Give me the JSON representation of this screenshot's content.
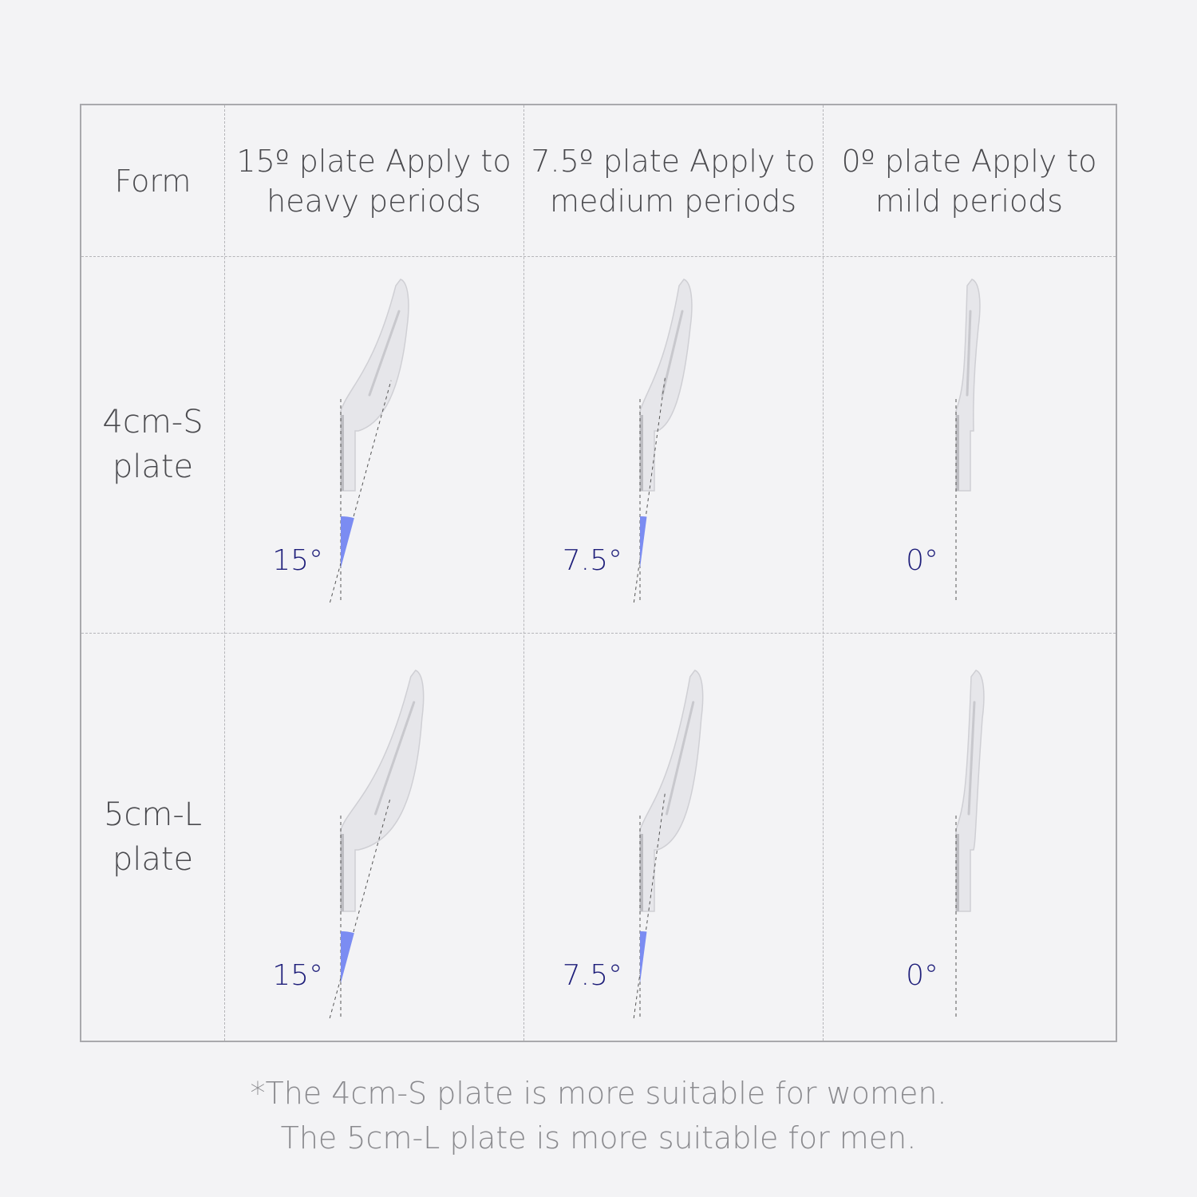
{
  "table": {
    "corner_header": "Form",
    "columns": [
      {
        "label": "15º plate Apply to heavy periods",
        "line1": "15º plate Apply to",
        "line2": "heavy periods",
        "angle": 15
      },
      {
        "label": "7.5º plate Apply to medium periods",
        "line1": "7.5º plate Apply to",
        "line2": "medium periods",
        "angle": 7.5
      },
      {
        "label": "0º plate Apply to mild periods",
        "line1": "0º plate Apply to",
        "line2": "mild periods",
        "angle": 0
      }
    ],
    "rows": [
      {
        "line1": "4cm-S",
        "line2": "plate",
        "angle_labels": [
          "15°",
          "7.5°",
          "0°"
        ]
      },
      {
        "line1": "5cm-L",
        "line2": "plate",
        "angle_labels": [
          "15°",
          "7.5°",
          "0°"
        ]
      }
    ]
  },
  "footnote": {
    "line1": "*The 4cm-S plate is more suitable for women.",
    "line2": "The 5cm-L plate is more suitable for men."
  },
  "colors": {
    "angle_wedge": "#7b8cf2",
    "angle_label": "#1e1e7a",
    "plate": "#e6e6ea",
    "border": "#a9a9ad"
  }
}
